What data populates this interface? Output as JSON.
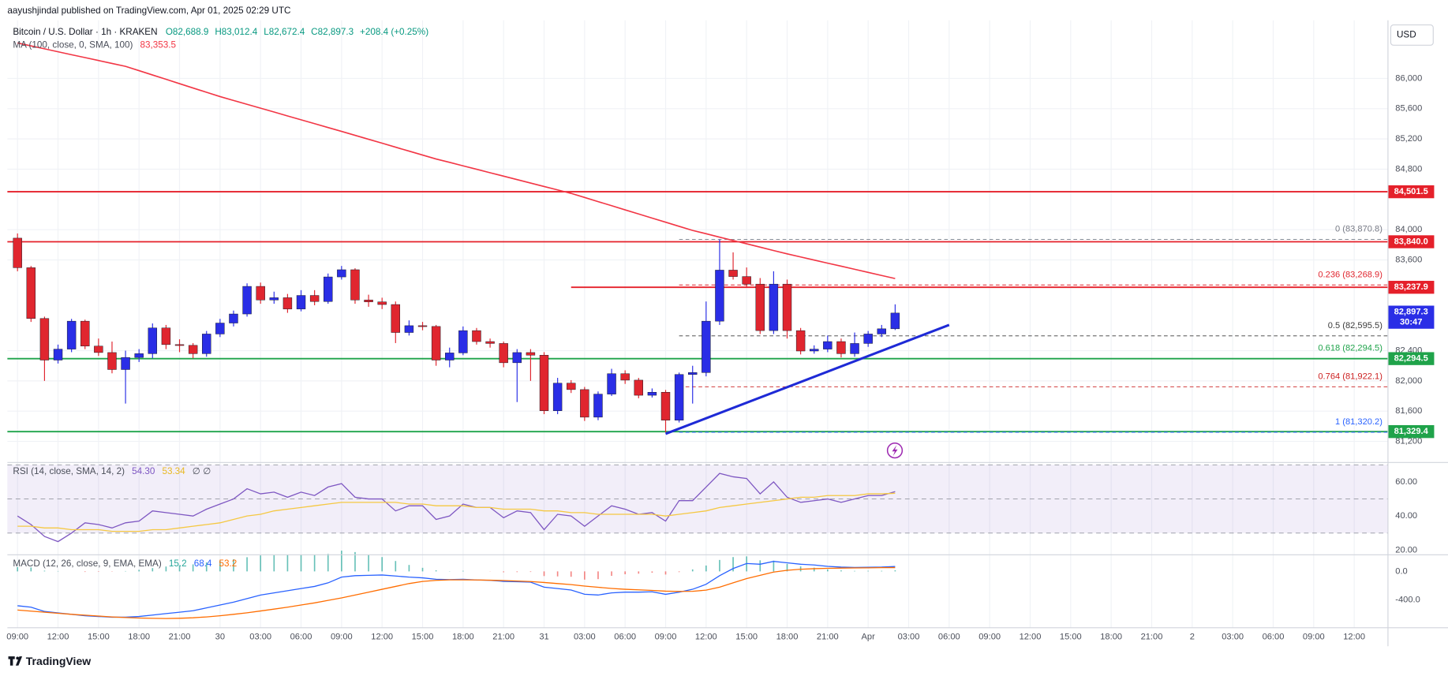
{
  "header": {
    "publisher": "aayushjindal published on TradingView.com, Apr 01, 2025 02:29 UTC"
  },
  "footer": {
    "brand": "TradingView"
  },
  "chart_data": [
    {
      "type": "candlestick",
      "title": "Bitcoin / U.S. Dollar · 1h · KRAKEN",
      "ohlc_labels": [
        "O82,688.9",
        "H83,012.4",
        "L82,672.4",
        "C82,897.3",
        "+208.4 (+0.25%)"
      ],
      "currency": "USD",
      "grid": true,
      "up_color": "#2a2ee6",
      "down_color": "#e0262f",
      "xlim": [
        -0.75,
        101.5
      ],
      "xticks": [
        {
          "value": 0,
          "label": "09:00"
        },
        {
          "value": 3,
          "label": "12:00"
        },
        {
          "value": 6,
          "label": "15:00"
        },
        {
          "value": 9,
          "label": "18:00"
        },
        {
          "value": 12,
          "label": "21:00"
        },
        {
          "value": 15,
          "label": "30"
        },
        {
          "value": 18,
          "label": "03:00"
        },
        {
          "value": 21,
          "label": "06:00"
        },
        {
          "value": 24,
          "label": "09:00"
        },
        {
          "value": 27,
          "label": "12:00"
        },
        {
          "value": 30,
          "label": "15:00"
        },
        {
          "value": 33,
          "label": "18:00"
        },
        {
          "value": 36,
          "label": "21:00"
        },
        {
          "value": 39,
          "label": "31"
        },
        {
          "value": 42,
          "label": "03:00"
        },
        {
          "value": 45,
          "label": "06:00"
        },
        {
          "value": 48,
          "label": "09:00"
        },
        {
          "value": 51,
          "label": "12:00"
        },
        {
          "value": 54,
          "label": "15:00"
        },
        {
          "value": 57,
          "label": "18:00"
        },
        {
          "value": 60,
          "label": "21:00"
        },
        {
          "value": 63,
          "label": "Apr"
        },
        {
          "value": 66,
          "label": "03:00"
        },
        {
          "value": 69,
          "label": "06:00"
        },
        {
          "value": 72,
          "label": "09:00"
        },
        {
          "value": 75,
          "label": "12:00"
        },
        {
          "value": 78,
          "label": "15:00"
        },
        {
          "value": 81,
          "label": "18:00"
        },
        {
          "value": 84,
          "label": "21:00"
        },
        {
          "value": 87,
          "label": "2"
        },
        {
          "value": 90,
          "label": "03:00"
        },
        {
          "value": 93,
          "label": "06:00"
        },
        {
          "value": 96,
          "label": "09:00"
        },
        {
          "value": 99,
          "label": "12:00"
        }
      ],
      "ylim": [
        80933,
        86769
      ],
      "yticks": [
        {
          "value": 81200,
          "label": "81,200"
        },
        {
          "value": 81600,
          "label": "81,600"
        },
        {
          "value": 82000,
          "label": "82,000"
        },
        {
          "value": 82400,
          "label": "82,400"
        },
        {
          "value": 83600,
          "label": "83,600"
        },
        {
          "value": 84000,
          "label": "84,000"
        },
        {
          "value": 84800,
          "label": "84,800"
        },
        {
          "value": 85200,
          "label": "85,200"
        },
        {
          "value": 85600,
          "label": "85,600"
        },
        {
          "value": 86000,
          "label": "86,000"
        }
      ],
      "candles": {
        "open": [
          83888,
          83497,
          82825,
          82275,
          82420,
          82790,
          82460,
          82375,
          82150,
          82310,
          82360,
          82700,
          82480,
          82470,
          82360,
          82620,
          82765,
          82885,
          83250,
          83070,
          83100,
          82950,
          83130,
          83050,
          83375,
          83470,
          83070,
          83045,
          83010,
          82640,
          82730,
          82720,
          82275,
          82370,
          82665,
          82520,
          82495,
          82240,
          82375,
          82340,
          81605,
          81970,
          81885,
          81520,
          81825,
          82095,
          82010,
          81810,
          81850,
          81480,
          82085,
          82110,
          82790,
          83465,
          83380,
          83280,
          82665,
          83280,
          82665,
          82395,
          82420,
          82520,
          82360,
          82495,
          82620,
          82688.9
        ],
        "high": [
          83950,
          83520,
          82850,
          82480,
          82820,
          82810,
          82560,
          82520,
          82400,
          82420,
          82760,
          82740,
          82550,
          82500,
          82660,
          82820,
          82930,
          83290,
          83300,
          83180,
          83150,
          83200,
          83200,
          83420,
          83520,
          83490,
          83140,
          83100,
          83050,
          82800,
          82780,
          82740,
          82440,
          82720,
          82700,
          82560,
          82520,
          82420,
          82420,
          82380,
          82040,
          82010,
          81920,
          81860,
          82160,
          82140,
          82040,
          81900,
          81880,
          82110,
          82200,
          83050,
          83870.8,
          83700,
          83500,
          83360,
          83450,
          83340,
          82700,
          82470,
          82600,
          82560,
          82640,
          82660,
          82740,
          83012.4
        ],
        "low": [
          83450,
          82780,
          82000,
          82230,
          82380,
          82420,
          82330,
          82100,
          81700,
          82250,
          82300,
          82420,
          82380,
          82300,
          82320,
          82580,
          82720,
          82850,
          83020,
          83020,
          82900,
          82920,
          83000,
          83020,
          83340,
          83020,
          82980,
          82950,
          82500,
          82600,
          82670,
          82200,
          82180,
          82340,
          82480,
          82440,
          82180,
          81720,
          82000,
          81560,
          81560,
          81840,
          81470,
          81480,
          81800,
          81960,
          81770,
          81780,
          81320.2,
          81450,
          81700,
          82060,
          82740,
          83340,
          83230,
          82620,
          82620,
          82560,
          82350,
          82360,
          82380,
          82310,
          82320,
          82450,
          82580,
          82672.4
        ],
        "close": [
          83497,
          82825,
          82275,
          82420,
          82790,
          82460,
          82375,
          82150,
          82310,
          82360,
          82700,
          82480,
          82470,
          82360,
          82620,
          82765,
          82885,
          83250,
          83070,
          83100,
          82950,
          83130,
          83050,
          83375,
          83470,
          83070,
          83045,
          83010,
          82640,
          82730,
          82720,
          82275,
          82370,
          82665,
          82520,
          82495,
          82240,
          82375,
          82340,
          81605,
          81970,
          81885,
          81520,
          81825,
          82095,
          82010,
          81810,
          81850,
          81480,
          82085,
          82110,
          82790,
          83465,
          83380,
          83280,
          82665,
          83280,
          82665,
          82395,
          82420,
          82520,
          82360,
          82495,
          82620,
          82688.9,
          82897.3
        ]
      },
      "series": [
        {
          "name": "MA (100, close, 0, SMA, 100)",
          "color": "#f23645",
          "value_label": "83,353.5",
          "values": [
            86470,
            86431,
            86392,
            86353,
            86314,
            86276,
            86237,
            86198,
            86160,
            86103,
            86046,
            85989,
            85931,
            85874,
            85817,
            85760,
            85709,
            85658,
            85607,
            85556,
            85504,
            85453,
            85402,
            85351,
            85300,
            85248,
            85196,
            85144,
            85091,
            85039,
            84987,
            84935,
            84890,
            84844,
            84799,
            84753,
            84708,
            84662,
            84617,
            84571,
            84526,
            84480,
            84426,
            84371,
            84317,
            84262,
            84208,
            84153,
            84099,
            84044,
            83990,
            83946,
            83901,
            83857,
            83813,
            83769,
            83724,
            83680,
            83639,
            83598,
            83557,
            83517,
            83476,
            83435,
            83394,
            83353.5
          ]
        }
      ],
      "levels": [
        {
          "value": 84501.5,
          "label": "84,501.5",
          "color": "#e5202a"
        },
        {
          "value": 83840,
          "label": "83,840.0",
          "color": "#e5202a"
        },
        {
          "value": 83237.9,
          "label": "83,237.9",
          "color": "#e5202a",
          "from": 41
        },
        {
          "value": 82294.5,
          "label": "82,294.5",
          "color": "#1fa34a"
        },
        {
          "value": 81329.4,
          "label": "81,329.4",
          "color": "#1fa34a"
        }
      ],
      "fib": {
        "from": 49,
        "levels": [
          {
            "value": 83870.8,
            "label": "0 (83,870.8)",
            "color": "#787b86"
          },
          {
            "value": 83268.9,
            "label": "0.236 (83,268.9)",
            "color": "#e0262f"
          },
          {
            "value": 82595.5,
            "label": "0.5 (82,595.5)",
            "color": "#3a3a3a"
          },
          {
            "value": 82294.5,
            "label": "0.618 (82,294.5)",
            "color": "#1fa34a"
          },
          {
            "value": 81922.1,
            "label": "0.764 (81,922.1)",
            "color": "#cc1f1f"
          },
          {
            "value": 81320.2,
            "label": "1 (81,320.2)",
            "color": "#2962ff"
          }
        ]
      },
      "trendline": {
        "x": [
          48,
          69
        ],
        "y": [
          81300,
          82740
        ],
        "color": "#1e2ad6"
      },
      "last_price": {
        "value": 82897.3,
        "label": "82,897.3",
        "countdown": "30:47",
        "color": "#2a2ee6"
      }
    },
    {
      "type": "line",
      "title": "RSI (14, close, SMA, 14, 2)",
      "extra": "∅ ∅",
      "ylim": [
        17.8,
        70.3
      ],
      "yticks": [
        {
          "value": 20,
          "label": "20.00"
        },
        {
          "value": 40,
          "label": "40.00"
        },
        {
          "value": 60,
          "label": "60.00"
        }
      ],
      "band": [
        30,
        70
      ],
      "dashed_levels": [
        70,
        50,
        30
      ],
      "series": [
        {
          "name": "RSI",
          "color": "#7e57c2",
          "value_label": "54.30",
          "values": [
            40,
            35,
            28,
            25,
            30,
            36,
            35,
            33,
            36,
            37,
            43,
            42,
            41,
            40,
            44,
            47,
            50,
            56,
            53,
            54,
            51,
            54,
            52,
            57,
            59,
            51,
            50,
            50,
            43,
            46,
            46,
            38,
            40,
            47,
            45,
            45,
            39,
            43,
            42,
            32,
            41,
            40,
            34,
            40,
            46,
            44,
            41,
            42,
            37,
            49,
            49,
            57,
            65,
            63,
            62,
            53,
            60,
            51,
            48,
            49,
            50,
            48,
            50,
            52,
            52,
            54.3
          ]
        },
        {
          "name": "SMA",
          "color": "#f5c842",
          "value_label": "53.34",
          "values": [
            34,
            34,
            33,
            33,
            32,
            32,
            32,
            31,
            31,
            31,
            32,
            32,
            33,
            34,
            35,
            36,
            38,
            40,
            41,
            43,
            44,
            45,
            46,
            47,
            48,
            48,
            48,
            48,
            48,
            47,
            47,
            46,
            46,
            46,
            45,
            45,
            44,
            44,
            44,
            43,
            43,
            42,
            42,
            41,
            41,
            41,
            41,
            41,
            40,
            41,
            42,
            43,
            45,
            46,
            47,
            48,
            49,
            50,
            51,
            51,
            52,
            52,
            52,
            53,
            53,
            53.34
          ]
        }
      ]
    },
    {
      "type": "macd",
      "title": "MACD (12, 26, close, 9, EMA, EMA)",
      "ylim": [
        -787,
        219
      ],
      "yticks": [
        {
          "value": 0,
          "label": "0.0"
        },
        {
          "value": -400,
          "label": "-400.0"
        }
      ],
      "histogram": {
        "name": "Histogram",
        "up_color": "#26a69a",
        "down_color": "#ef5350",
        "value_label": "15.2",
        "values": [
          60,
          55,
          10,
          5,
          0,
          -8,
          -6,
          -4,
          5,
          22,
          46,
          68,
          85,
          98,
          126,
          150,
          170,
          198,
          223,
          227,
          230,
          230,
          230,
          245,
          290,
          270,
          235,
          200,
          145,
          90,
          50,
          15,
          3,
          8,
          0,
          -2,
          -12,
          -10,
          -8,
          -65,
          -70,
          -75,
          -115,
          -108,
          -62,
          -40,
          -32,
          -19,
          -44,
          -10,
          28,
          82,
          160,
          200,
          210,
          155,
          150,
          105,
          70,
          52,
          27,
          14,
          7,
          8,
          8,
          15.2
        ]
      },
      "series": [
        {
          "name": "MACD",
          "color": "#2962ff",
          "value_label": "68.4",
          "values": [
            -480,
            -500,
            -560,
            -580,
            -600,
            -620,
            -630,
            -640,
            -640,
            -630,
            -610,
            -590,
            -570,
            -550,
            -510,
            -470,
            -430,
            -380,
            -330,
            -300,
            -270,
            -240,
            -210,
            -160,
            -80,
            -60,
            -55,
            -50,
            -65,
            -80,
            -90,
            -110,
            -115,
            -110,
            -120,
            -125,
            -140,
            -145,
            -150,
            -220,
            -240,
            -260,
            -320,
            -330,
            -300,
            -290,
            -290,
            -285,
            -320,
            -290,
            -250,
            -180,
            -60,
            40,
            110,
            100,
            140,
            120,
            100,
            90,
            70,
            60,
            55,
            58,
            60,
            68.4
          ]
        },
        {
          "name": "Signal",
          "color": "#ff6d00",
          "value_label": "53.2",
          "values": [
            -540,
            -555,
            -570,
            -585,
            -600,
            -612,
            -624,
            -636,
            -645,
            -652,
            -656,
            -658,
            -655,
            -648,
            -636,
            -620,
            -600,
            -578,
            -553,
            -527,
            -500,
            -470,
            -440,
            -405,
            -370,
            -330,
            -290,
            -250,
            -210,
            -170,
            -140,
            -125,
            -118,
            -118,
            -120,
            -123,
            -128,
            -135,
            -142,
            -155,
            -170,
            -185,
            -205,
            -222,
            -238,
            -250,
            -258,
            -266,
            -276,
            -280,
            -278,
            -262,
            -220,
            -160,
            -100,
            -55,
            -10,
            15,
            30,
            38,
            43,
            46,
            48,
            50,
            52,
            53.2
          ]
        }
      ]
    }
  ]
}
